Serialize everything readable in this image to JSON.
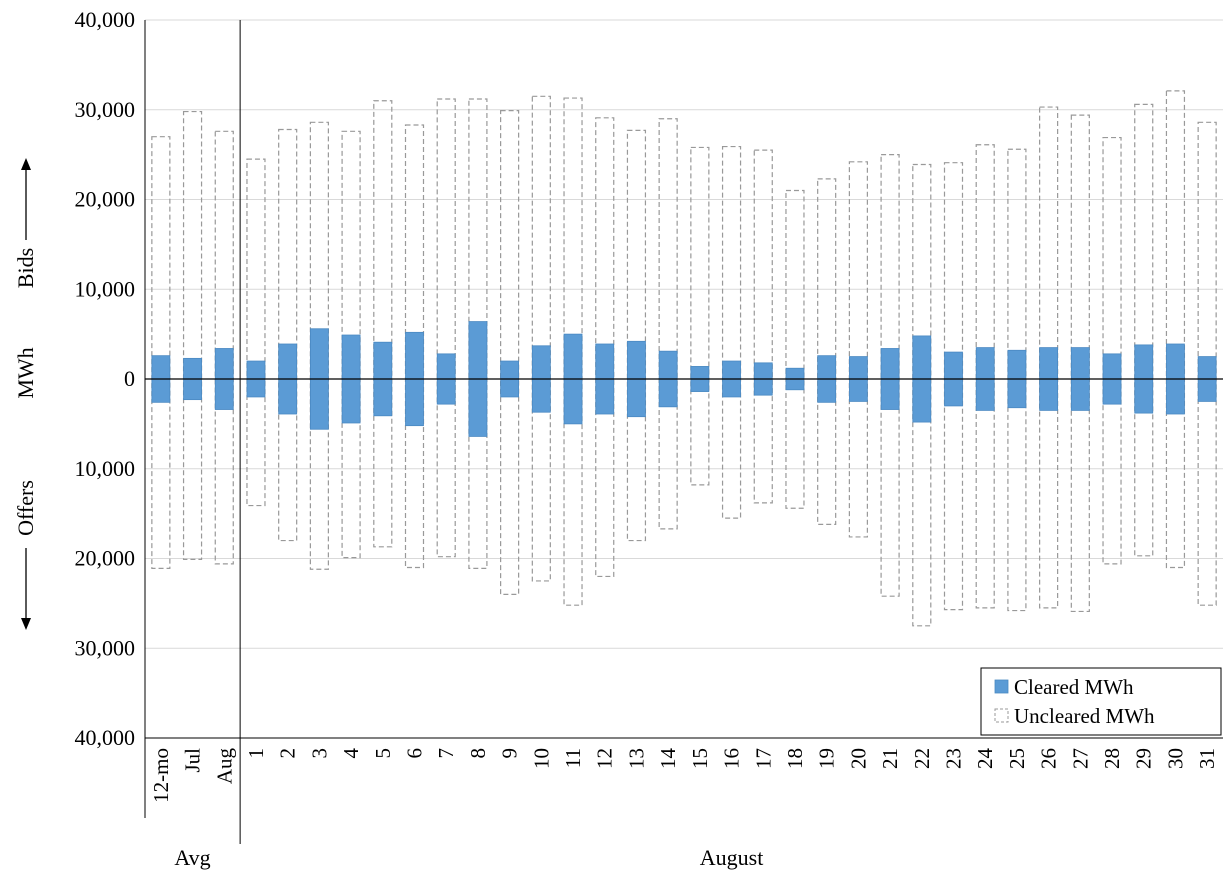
{
  "chart_data": {
    "type": "bar",
    "y_axis": {
      "range": [
        -40000,
        40000
      ],
      "ticks": [
        40000,
        30000,
        20000,
        10000,
        0,
        -10000,
        -20000,
        -30000,
        -40000
      ],
      "tick_labels": [
        "40,000",
        "30,000",
        "20,000",
        "10,000",
        "0",
        "10,000",
        "20,000",
        "30,000",
        "40,000"
      ],
      "label_top": "Bids",
      "label_middle": "MWh",
      "label_bottom": "Offers",
      "grid": true
    },
    "categories": [
      "12-mo",
      "Jul",
      "Aug",
      "1",
      "2",
      "3",
      "4",
      "5",
      "6",
      "7",
      "8",
      "9",
      "10",
      "11",
      "12",
      "13",
      "14",
      "15",
      "16",
      "17",
      "18",
      "19",
      "20",
      "21",
      "22",
      "23",
      "24",
      "25",
      "26",
      "27",
      "28",
      "29",
      "30",
      "31"
    ],
    "groups": [
      {
        "label": "Avg",
        "start": 0,
        "end": 2
      },
      {
        "label": "August",
        "start": 3,
        "end": 33
      }
    ],
    "series": [
      {
        "name": "Cleared MWh",
        "color": "#5b9bd5",
        "bid_values": [
          2600,
          2300,
          3400,
          2000,
          3900,
          5600,
          4900,
          4100,
          5200,
          2800,
          6400,
          2000,
          3700,
          5000,
          3900,
          4200,
          3100,
          1400,
          2000,
          1800,
          1200,
          2600,
          2500,
          3400,
          4800,
          3000,
          3500,
          3200,
          3500,
          3500,
          2800,
          3800,
          3900,
          2500
        ],
        "offer_values": [
          -2600,
          -2300,
          -3400,
          -2000,
          -3900,
          -5600,
          -4900,
          -4100,
          -5200,
          -2800,
          -6400,
          -2000,
          -3700,
          -5000,
          -3900,
          -4200,
          -3100,
          -1400,
          -2000,
          -1800,
          -1200,
          -2600,
          -2500,
          -3400,
          -4800,
          -3000,
          -3500,
          -3200,
          -3500,
          -3500,
          -2800,
          -3800,
          -3900,
          -2500
        ]
      },
      {
        "name": "Uncleared MWh",
        "color": "#999999",
        "style": "dashed outline",
        "bid_totals": [
          27000,
          29800,
          27600,
          24500,
          27800,
          28600,
          27600,
          31000,
          28300,
          31200,
          31200,
          29900,
          31500,
          31300,
          29100,
          27700,
          29000,
          25800,
          25900,
          25500,
          21000,
          22300,
          24200,
          25000,
          23900,
          24100,
          26100,
          25600,
          30300,
          29400,
          26900,
          30600,
          32100,
          28600
        ],
        "offer_totals": [
          -21100,
          -20100,
          -20600,
          -14100,
          -18000,
          -21200,
          -19900,
          -18700,
          -21000,
          -19800,
          -21100,
          -24000,
          -22500,
          -25200,
          -22000,
          -18000,
          -16700,
          -11800,
          -15500,
          -13800,
          -14400,
          -16200,
          -17600,
          -24200,
          -27500,
          -25700,
          -25500,
          -25800,
          -25500,
          -25900,
          -20600,
          -19700,
          -21000,
          -25200
        ]
      }
    ],
    "legend": {
      "position": "bottom-right",
      "items": [
        "Cleared MWh",
        "Uncleared MWh"
      ]
    }
  }
}
